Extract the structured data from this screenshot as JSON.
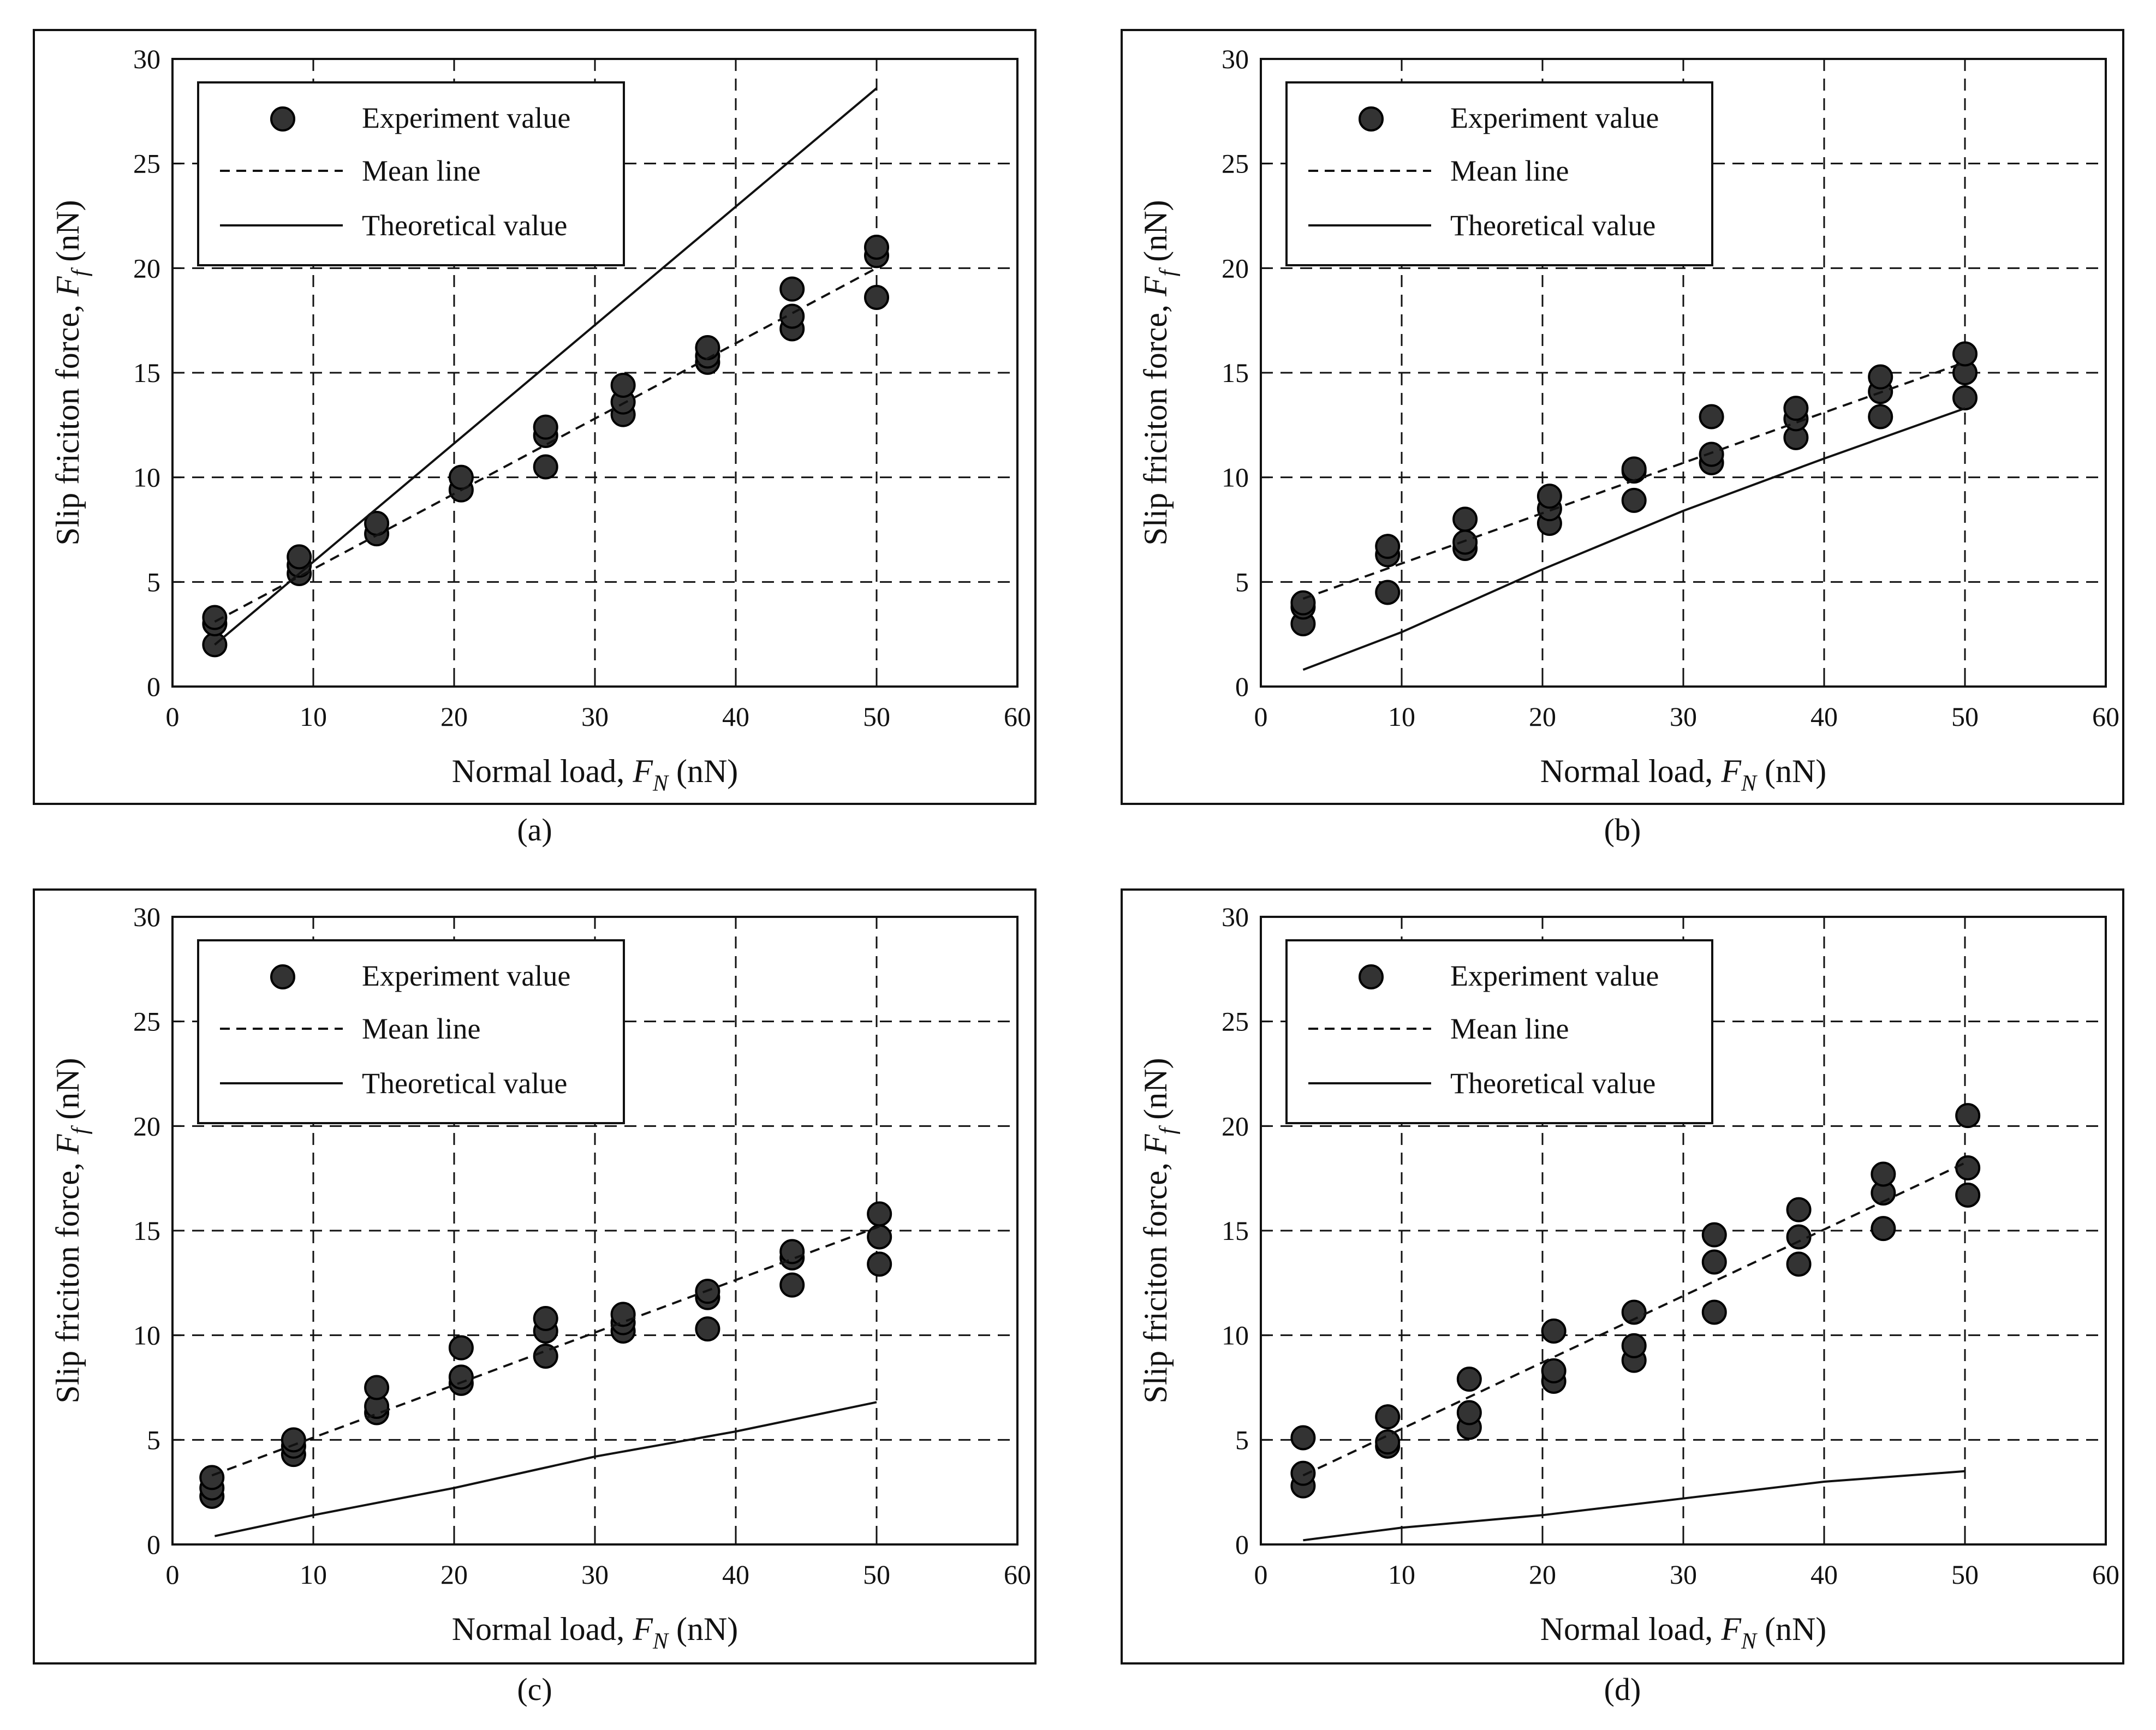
{
  "figure": {
    "xlabel": "Normal load,",
    "xlabel_sym": "F",
    "xlabel_sub": "N",
    "xlabel_unit": "(nN)",
    "ylabel": "Slip friciton force,",
    "ylabel_sym": "F",
    "ylabel_sub": "f",
    "ylabel_unit": "(nN)",
    "legend": [
      "Experiment value",
      "Mean line",
      "Theoretical value"
    ],
    "colors": {
      "marker": "#333333",
      "line": "#111111",
      "grid": "#111111"
    }
  },
  "chart_data": [
    {
      "panel": "(a)",
      "type": "scatter",
      "xlim": [
        0,
        60
      ],
      "ylim": [
        0,
        30
      ],
      "xticks": [
        0,
        10,
        20,
        30,
        40,
        50,
        60
      ],
      "yticks": [
        0,
        5,
        10,
        15,
        20,
        25,
        30
      ],
      "grid": true,
      "legend_position": "top-left",
      "series": [
        {
          "name": "Experiment value",
          "style": "markers",
          "points": [
            [
              3,
              2.0
            ],
            [
              3,
              3.0
            ],
            [
              3,
              3.3
            ],
            [
              9,
              5.4
            ],
            [
              9,
              5.8
            ],
            [
              9,
              6.2
            ],
            [
              14.5,
              7.3
            ],
            [
              14.5,
              7.8
            ],
            [
              20.5,
              9.4
            ],
            [
              20.5,
              10.0
            ],
            [
              26.5,
              10.5
            ],
            [
              26.5,
              12.0
            ],
            [
              26.5,
              12.4
            ],
            [
              32,
              13.0
            ],
            [
              32,
              13.6
            ],
            [
              32,
              14.4
            ],
            [
              38,
              15.5
            ],
            [
              38,
              15.8
            ],
            [
              38,
              16.2
            ],
            [
              44,
              17.1
            ],
            [
              44,
              17.7
            ],
            [
              44,
              19.0
            ],
            [
              50,
              18.6
            ],
            [
              50,
              20.6
            ],
            [
              50,
              21.0
            ]
          ]
        },
        {
          "name": "Mean line",
          "style": "dashed",
          "points": [
            [
              3,
              3.1
            ],
            [
              50,
              20.0
            ]
          ]
        },
        {
          "name": "Theoretical value",
          "style": "solid",
          "points": [
            [
              3,
              2.0
            ],
            [
              50,
              28.6
            ]
          ]
        }
      ]
    },
    {
      "panel": "(b)",
      "type": "scatter",
      "xlim": [
        0,
        60
      ],
      "ylim": [
        0,
        30
      ],
      "xticks": [
        0,
        10,
        20,
        30,
        40,
        50,
        60
      ],
      "yticks": [
        0,
        5,
        10,
        15,
        20,
        25,
        30
      ],
      "grid": true,
      "legend_position": "top-left",
      "series": [
        {
          "name": "Experiment value",
          "style": "markers",
          "points": [
            [
              3,
              3.0
            ],
            [
              3,
              3.8
            ],
            [
              3,
              4.0
            ],
            [
              9,
              4.5
            ],
            [
              9,
              6.3
            ],
            [
              9,
              6.7
            ],
            [
              14.5,
              6.6
            ],
            [
              14.5,
              6.9
            ],
            [
              14.5,
              8.0
            ],
            [
              20.5,
              7.8
            ],
            [
              20.5,
              8.5
            ],
            [
              20.5,
              9.1
            ],
            [
              26.5,
              8.9
            ],
            [
              26.5,
              10.3
            ],
            [
              26.5,
              10.4
            ],
            [
              32,
              10.7
            ],
            [
              32,
              11.1
            ],
            [
              32,
              12.9
            ],
            [
              38,
              11.9
            ],
            [
              38,
              12.8
            ],
            [
              38,
              13.3
            ],
            [
              44,
              12.9
            ],
            [
              44,
              14.1
            ],
            [
              44,
              14.8
            ],
            [
              50,
              13.8
            ],
            [
              50,
              15.0
            ],
            [
              50,
              15.9
            ]
          ]
        },
        {
          "name": "Mean line",
          "style": "dashed",
          "points": [
            [
              3,
              4.2
            ],
            [
              50,
              15.5
            ]
          ]
        },
        {
          "name": "Theoretical value",
          "style": "solid",
          "points": [
            [
              3,
              0.8
            ],
            [
              10,
              2.6
            ],
            [
              20,
              5.6
            ],
            [
              30,
              8.4
            ],
            [
              40,
              10.9
            ],
            [
              50,
              13.3
            ]
          ]
        }
      ]
    },
    {
      "panel": "(c)",
      "type": "scatter",
      "xlim": [
        0,
        60
      ],
      "ylim": [
        0,
        30
      ],
      "xticks": [
        0,
        10,
        20,
        30,
        40,
        50,
        60
      ],
      "yticks": [
        0,
        5,
        10,
        15,
        20,
        25,
        30
      ],
      "grid": true,
      "legend_position": "top-left",
      "series": [
        {
          "name": "Experiment value",
          "style": "markers",
          "points": [
            [
              2.8,
              2.3
            ],
            [
              2.8,
              2.7
            ],
            [
              2.8,
              3.2
            ],
            [
              8.6,
              4.3
            ],
            [
              8.6,
              4.7
            ],
            [
              8.6,
              5.0
            ],
            [
              14.5,
              6.3
            ],
            [
              14.5,
              6.6
            ],
            [
              14.5,
              7.5
            ],
            [
              20.5,
              7.7
            ],
            [
              20.5,
              8.0
            ],
            [
              20.5,
              9.4
            ],
            [
              26.5,
              9.0
            ],
            [
              26.5,
              10.2
            ],
            [
              26.5,
              10.8
            ],
            [
              32,
              10.2
            ],
            [
              32,
              10.6
            ],
            [
              32,
              11.0
            ],
            [
              38,
              10.3
            ],
            [
              38,
              11.8
            ],
            [
              38,
              12.1
            ],
            [
              44,
              12.4
            ],
            [
              44,
              13.7
            ],
            [
              44,
              14.0
            ],
            [
              50.2,
              13.4
            ],
            [
              50.2,
              14.7
            ],
            [
              50.2,
              15.8
            ]
          ]
        },
        {
          "name": "Mean line",
          "style": "dashed",
          "points": [
            [
              2.8,
              3.3
            ],
            [
              50.2,
              15.2
            ]
          ]
        },
        {
          "name": "Theoretical value",
          "style": "solid",
          "points": [
            [
              3,
              0.4
            ],
            [
              10,
              1.4
            ],
            [
              20,
              2.7
            ],
            [
              26,
              3.6
            ],
            [
              30,
              4.2
            ],
            [
              40,
              5.4
            ],
            [
              50,
              6.8
            ]
          ]
        }
      ]
    },
    {
      "panel": "(d)",
      "type": "scatter",
      "xlim": [
        0,
        60
      ],
      "ylim": [
        0,
        30
      ],
      "xticks": [
        0,
        10,
        20,
        30,
        40,
        50,
        60
      ],
      "yticks": [
        0,
        5,
        10,
        15,
        20,
        25,
        30
      ],
      "grid": true,
      "legend_position": "top-left",
      "series": [
        {
          "name": "Experiment value",
          "style": "markers",
          "points": [
            [
              3,
              2.8
            ],
            [
              3,
              3.4
            ],
            [
              3,
              5.1
            ],
            [
              9,
              4.7
            ],
            [
              9,
              4.9
            ],
            [
              9,
              6.1
            ],
            [
              14.8,
              5.6
            ],
            [
              14.8,
              6.3
            ],
            [
              14.8,
              7.9
            ],
            [
              20.8,
              7.8
            ],
            [
              20.8,
              8.3
            ],
            [
              20.8,
              10.2
            ],
            [
              26.5,
              8.8
            ],
            [
              26.5,
              9.5
            ],
            [
              26.5,
              11.1
            ],
            [
              32.2,
              11.1
            ],
            [
              32.2,
              13.5
            ],
            [
              32.2,
              14.8
            ],
            [
              38.2,
              13.4
            ],
            [
              38.2,
              14.7
            ],
            [
              38.2,
              16.0
            ],
            [
              44.2,
              15.1
            ],
            [
              44.2,
              16.8
            ],
            [
              44.2,
              17.7
            ],
            [
              50.2,
              16.7
            ],
            [
              50.2,
              18.0
            ],
            [
              50.2,
              20.5
            ]
          ]
        },
        {
          "name": "Mean line",
          "style": "dashed",
          "points": [
            [
              3,
              3.3
            ],
            [
              50.2,
              18.3
            ]
          ]
        },
        {
          "name": "Theoretical value",
          "style": "solid",
          "points": [
            [
              3,
              0.2
            ],
            [
              10,
              0.8
            ],
            [
              20,
              1.4
            ],
            [
              30,
              2.2
            ],
            [
              40,
              3.0
            ],
            [
              50,
              3.5
            ]
          ]
        }
      ]
    }
  ]
}
